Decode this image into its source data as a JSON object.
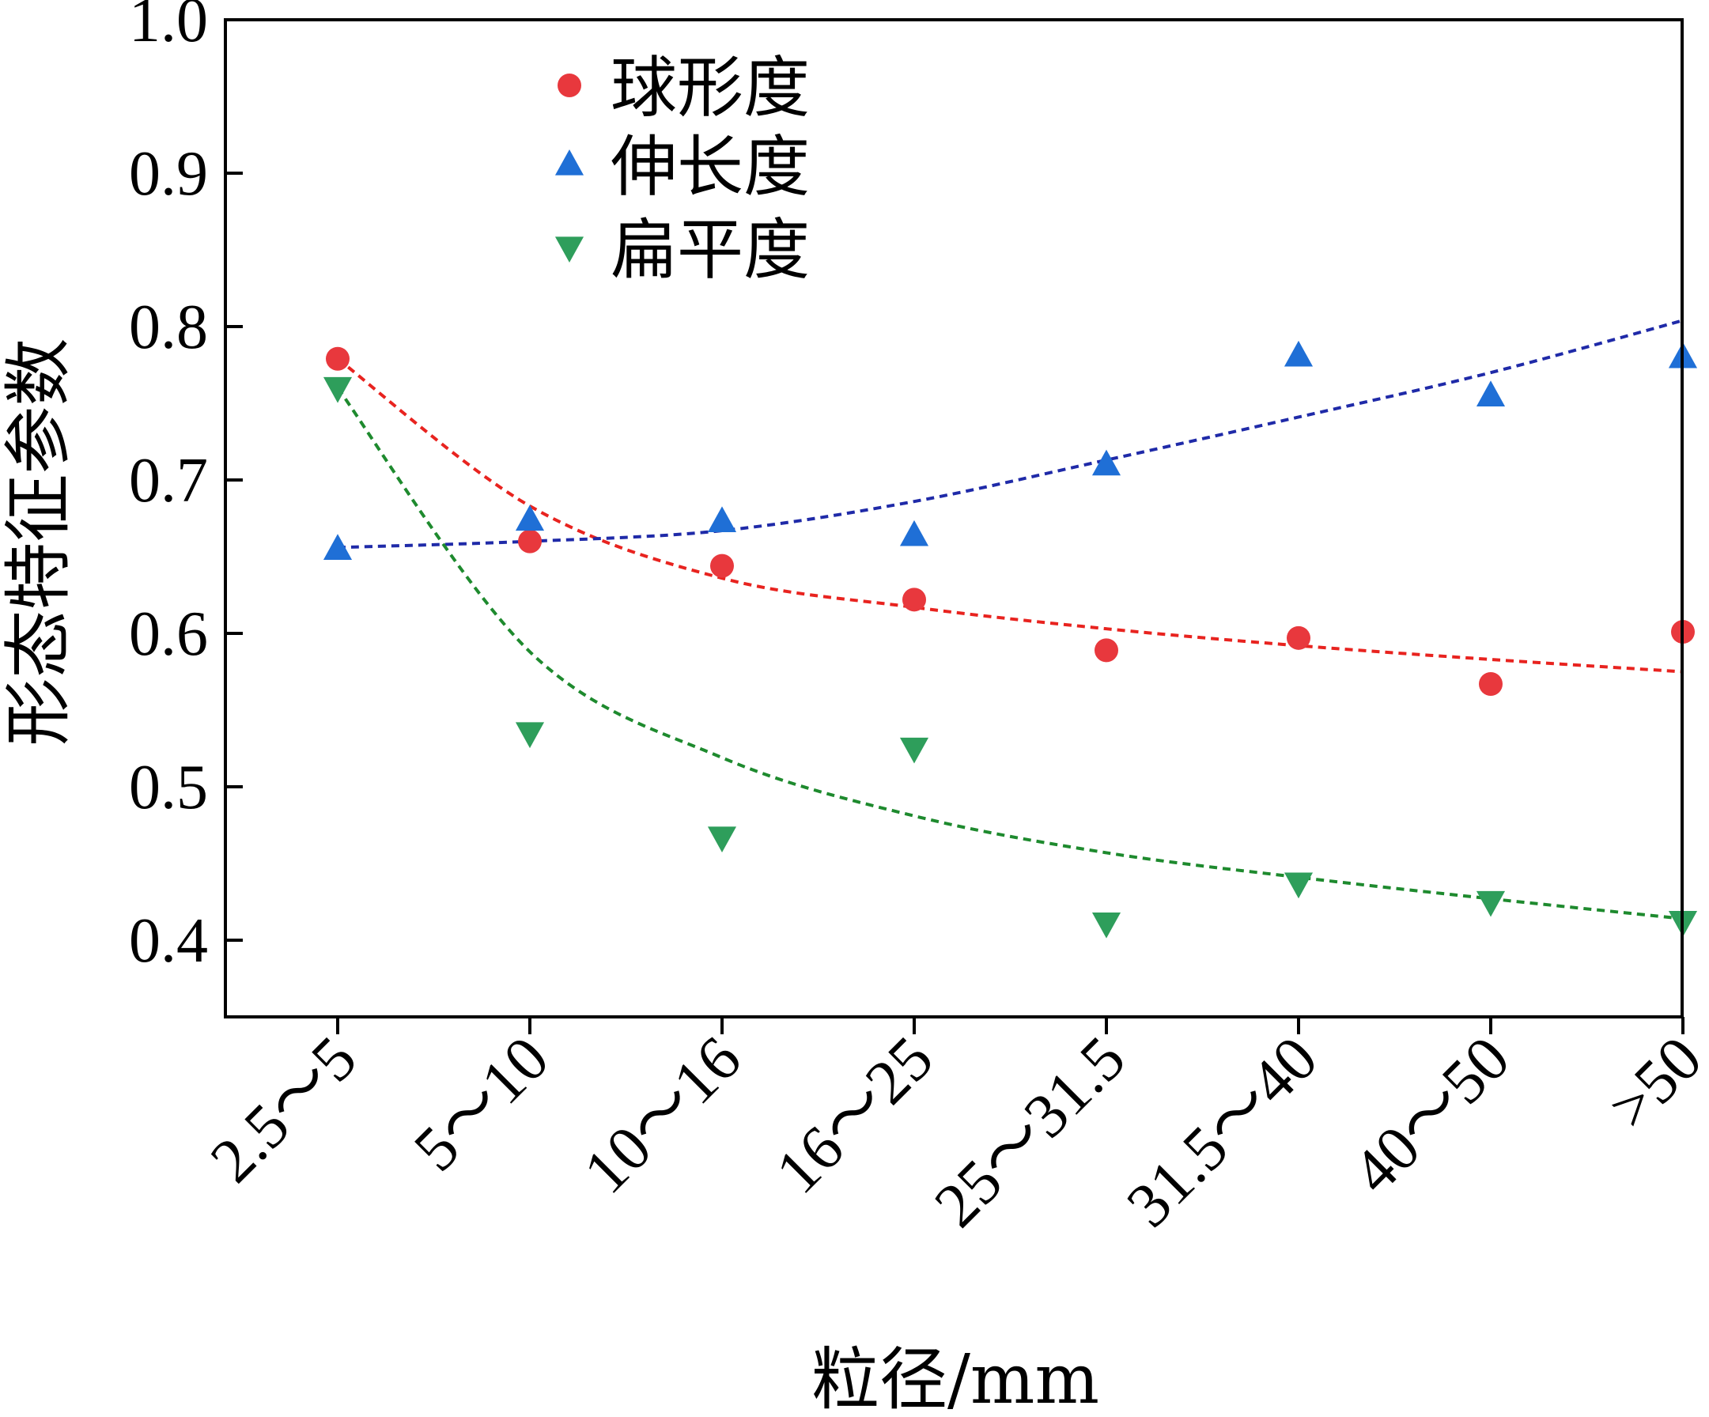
{
  "chart_data": {
    "type": "scatter",
    "title": "",
    "xlabel": "粒径/mm",
    "ylabel": "形态特征参数",
    "categories": [
      "2.5～5",
      "5～10",
      "10～16",
      "16～25",
      "25～31.5",
      "31.5～40",
      "40～50",
      ">50"
    ],
    "ylim": [
      0.35,
      1.0
    ],
    "yticks": [
      "0.4",
      "0.5",
      "0.6",
      "0.7",
      "0.8",
      "0.9",
      "1.0"
    ],
    "legend_position": "top-left",
    "series": [
      {
        "name": "球形度",
        "marker": "circle",
        "color": "#e8383d",
        "trend_color": "#e8231f",
        "values": [
          0.779,
          0.66,
          0.644,
          0.622,
          0.589,
          0.597,
          0.567,
          0.601
        ],
        "trend": [
          0.779,
          0.683,
          0.636,
          0.617,
          0.603,
          0.592,
          0.583,
          0.575
        ]
      },
      {
        "name": "伸长度",
        "marker": "triangle-up",
        "color": "#1f6fd6",
        "trend_color": "#1f2aa8",
        "values": [
          0.655,
          0.674,
          0.673,
          0.664,
          0.71,
          0.781,
          0.755,
          0.78
        ],
        "trend": [
          0.656,
          0.66,
          0.667,
          0.686,
          0.713,
          0.741,
          0.77,
          0.804
        ]
      },
      {
        "name": "扁平度",
        "marker": "triangle-down",
        "color": "#2e9e5b",
        "trend_color": "#1e8a2e",
        "values": [
          0.76,
          0.535,
          0.467,
          0.525,
          0.411,
          0.437,
          0.425,
          0.412
        ],
        "trend": [
          0.76,
          0.588,
          0.519,
          0.481,
          0.457,
          0.441,
          0.427,
          0.414
        ]
      }
    ]
  }
}
